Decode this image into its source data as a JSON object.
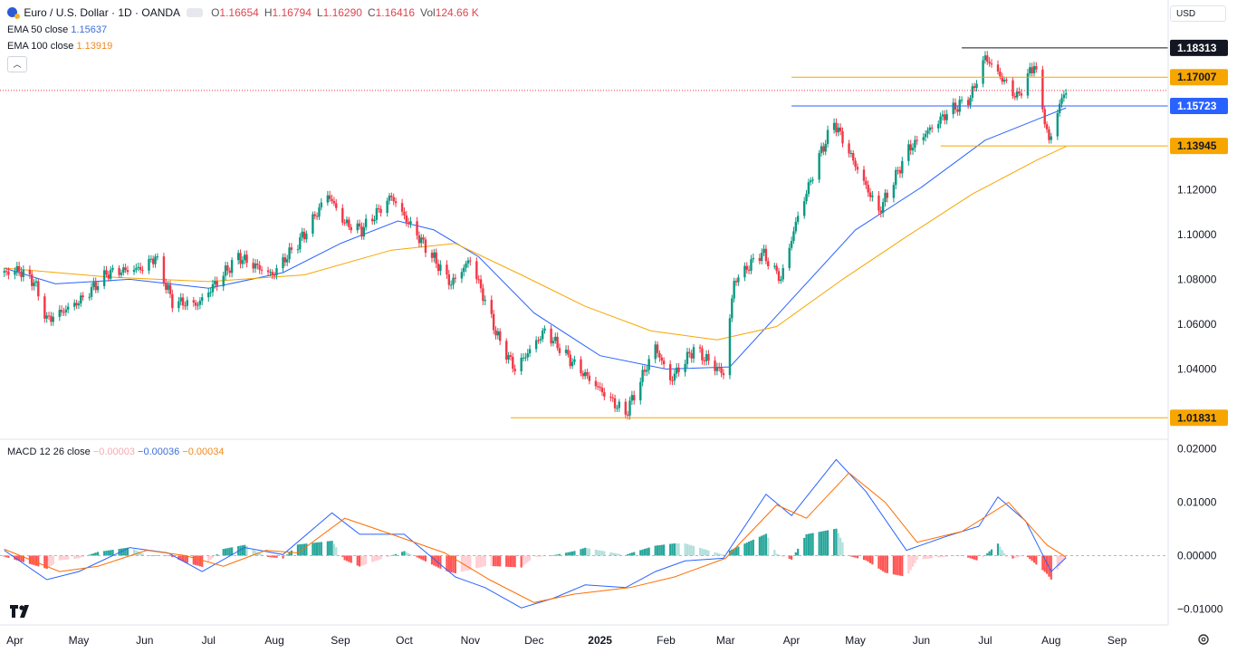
{
  "header": {
    "symbol": "Euro / U.S. Dollar · 1D · OANDA",
    "ohlc": [
      {
        "k": "O",
        "v": "1.16654"
      },
      {
        "k": "H",
        "v": "1.16794"
      },
      {
        "k": "L",
        "v": "1.16290"
      },
      {
        "k": "C",
        "v": "1.16416"
      },
      {
        "k": "Vol",
        "v": "124.66 K"
      }
    ],
    "ema50_label": "EMA 50 close",
    "ema50_value": "1.15637",
    "ema100_label": "EMA 100 close",
    "ema100_value": "1.13919",
    "macd_label": "MACD 12 26 close",
    "macd_values": [
      "−0.00003",
      "−0.00036",
      "−0.00034"
    ],
    "currency": "USD"
  },
  "colors": {
    "up": "#089981",
    "down": "#f23645",
    "ema50": "#2962ff",
    "ema100": "#f7a600",
    "hist_up_strong": "#26a69a",
    "hist_up_weak": "#b2dfdb",
    "hist_down_strong": "#ff5252",
    "hist_down_weak": "#ffcdd2",
    "macd_line": "#2962ff",
    "signal_line": "#ff6d00",
    "grid_text": "#131722"
  },
  "chart_data": [
    {
      "type": "candlestick",
      "title": "Euro / U.S. Dollar · 1D · OANDA",
      "x_labels": [
        "Apr",
        "May",
        "Jun",
        "Jul",
        "Aug",
        "Sep",
        "Oct",
        "Nov",
        "Dec",
        "2025",
        "Feb",
        "Mar",
        "Apr",
        "May",
        "Jun",
        "Jul",
        "Aug",
        "Sep"
      ],
      "x_label_dates": [
        "2024-04",
        "2024-05",
        "2024-06",
        "2024-07",
        "2024-08",
        "2024-09",
        "2024-10",
        "2024-11",
        "2024-12",
        "2025-01",
        "2025-02",
        "2025-03",
        "2025-04",
        "2025-05",
        "2025-06",
        "2025-07",
        "2025-08",
        "2025-09"
      ],
      "x_range": [
        "2024-03-25",
        "2025-09-25"
      ],
      "y_ticks": [
        "1.04000",
        "1.06000",
        "1.08000",
        "1.10000",
        "1.12000"
      ],
      "y_tick_values": [
        1.04,
        1.06,
        1.08,
        1.1,
        1.12
      ],
      "ylim": [
        1.0148,
        1.1875
      ],
      "grid": false,
      "price_path": [
        [
          "2024-03-27",
          1.083
        ],
        [
          "2024-04-03",
          1.084
        ],
        [
          "2024-04-10",
          1.079
        ],
        [
          "2024-04-16",
          1.062
        ],
        [
          "2024-04-22",
          1.065
        ],
        [
          "2024-05-01",
          1.07
        ],
        [
          "2024-05-15",
          1.083
        ],
        [
          "2024-05-31",
          1.085
        ],
        [
          "2024-06-06",
          1.09
        ],
        [
          "2024-06-14",
          1.07
        ],
        [
          "2024-06-26",
          1.069
        ],
        [
          "2024-07-15",
          1.09
        ],
        [
          "2024-07-31",
          1.082
        ],
        [
          "2024-08-15",
          1.1
        ],
        [
          "2024-08-26",
          1.118
        ],
        [
          "2024-09-03",
          1.105
        ],
        [
          "2024-09-11",
          1.102
        ],
        [
          "2024-09-25",
          1.117
        ],
        [
          "2024-10-01",
          1.108
        ],
        [
          "2024-10-15",
          1.089
        ],
        [
          "2024-10-23",
          1.078
        ],
        [
          "2024-11-01",
          1.089
        ],
        [
          "2024-11-14",
          1.054
        ],
        [
          "2024-11-22",
          1.04
        ],
        [
          "2024-12-06",
          1.057
        ],
        [
          "2024-12-20",
          1.042
        ],
        [
          "2025-01-02",
          1.03
        ],
        [
          "2025-01-13",
          1.02
        ],
        [
          "2025-01-27",
          1.05
        ],
        [
          "2025-02-03",
          1.035
        ],
        [
          "2025-02-14",
          1.049
        ],
        [
          "2025-02-28",
          1.038
        ],
        [
          "2025-03-05",
          1.079
        ],
        [
          "2025-03-18",
          1.092
        ],
        [
          "2025-03-27",
          1.08
        ],
        [
          "2025-04-03",
          1.105
        ],
        [
          "2025-04-14",
          1.135
        ],
        [
          "2025-04-21",
          1.15
        ],
        [
          "2025-05-12",
          1.11
        ],
        [
          "2025-05-26",
          1.138
        ],
        [
          "2025-06-13",
          1.154
        ],
        [
          "2025-06-24",
          1.161
        ],
        [
          "2025-07-01",
          1.179
        ],
        [
          "2025-07-16",
          1.161
        ],
        [
          "2025-07-24",
          1.176
        ],
        [
          "2025-07-31",
          1.141
        ],
        [
          "2025-08-05",
          1.158
        ],
        [
          "2025-08-08",
          1.1642
        ]
      ],
      "series": [
        {
          "name": "EMA 50 close",
          "values": [
            [
              "2024-03-27",
              1.085
            ],
            [
              "2024-04-20",
              1.078
            ],
            [
              "2024-05-25",
              1.08
            ],
            [
              "2024-07-01",
              1.076
            ],
            [
              "2024-08-05",
              1.083
            ],
            [
              "2024-09-01",
              1.096
            ],
            [
              "2024-09-28",
              1.106
            ],
            [
              "2024-10-15",
              1.102
            ],
            [
              "2024-11-05",
              1.09
            ],
            [
              "2024-12-01",
              1.065
            ],
            [
              "2025-01-01",
              1.046
            ],
            [
              "2025-02-01",
              1.04
            ],
            [
              "2025-03-03",
              1.041
            ],
            [
              "2025-04-02",
              1.072
            ],
            [
              "2025-05-01",
              1.102
            ],
            [
              "2025-06-01",
              1.121
            ],
            [
              "2025-07-01",
              1.142
            ],
            [
              "2025-08-08",
              1.1564
            ]
          ]
        },
        {
          "name": "EMA 100 close",
          "values": [
            [
              "2024-03-27",
              1.085
            ],
            [
              "2024-05-15",
              1.081
            ],
            [
              "2024-07-01",
              1.079
            ],
            [
              "2024-08-15",
              1.082
            ],
            [
              "2024-09-25",
              1.093
            ],
            [
              "2024-10-25",
              1.096
            ],
            [
              "2024-11-25",
              1.082
            ],
            [
              "2024-12-25",
              1.068
            ],
            [
              "2025-01-25",
              1.057
            ],
            [
              "2025-02-25",
              1.053
            ],
            [
              "2025-03-25",
              1.059
            ],
            [
              "2025-04-25",
              1.08
            ],
            [
              "2025-05-25",
              1.099
            ],
            [
              "2025-06-25",
              1.118
            ],
            [
              "2025-07-25",
              1.133
            ],
            [
              "2025-08-08",
              1.1392
            ]
          ]
        }
      ],
      "horizontal_lines": [
        {
          "label": "1.18313",
          "value": 1.18313,
          "from": "2025-06-20",
          "badge": "dark"
        },
        {
          "label": "1.17007",
          "value": 1.17007,
          "from": "2025-04-01",
          "badge": "orange"
        },
        {
          "label": "1.15723",
          "value": 1.15723,
          "from": "2025-04-01",
          "badge": "blue"
        },
        {
          "label": "1.13945",
          "value": 1.13945,
          "from": "2025-06-10",
          "badge": "orange"
        },
        {
          "label": "1.01831",
          "value": 1.01831,
          "from": "2024-11-20",
          "badge": "orange"
        }
      ],
      "last_price": 1.16416
    },
    {
      "type": "line",
      "title": "MACD 12 26 close",
      "y_ticks": [
        "0.02000",
        "0.01000",
        "0.00000",
        "−0.01000"
      ],
      "y_tick_values": [
        0.02,
        0.01,
        0.0,
        -0.01
      ],
      "ylim": [
        -0.0113,
        0.0213
      ],
      "series": [
        {
          "name": "MACD",
          "values": [
            [
              "2024-03-27",
              0.001
            ],
            [
              "2024-04-16",
              -0.0045
            ],
            [
              "2024-05-01",
              -0.003
            ],
            [
              "2024-05-25",
              0.0015
            ],
            [
              "2024-06-12",
              0.0005
            ],
            [
              "2024-06-28",
              -0.003
            ],
            [
              "2024-07-18",
              0.0015
            ],
            [
              "2024-08-05",
              0.0002
            ],
            [
              "2024-08-28",
              0.008
            ],
            [
              "2024-09-10",
              0.004
            ],
            [
              "2024-10-01",
              0.004
            ],
            [
              "2024-10-25",
              -0.004
            ],
            [
              "2024-11-08",
              -0.006
            ],
            [
              "2024-11-25",
              -0.0098
            ],
            [
              "2024-12-10",
              -0.008
            ],
            [
              "2024-12-25",
              -0.0055
            ],
            [
              "2025-01-13",
              -0.006
            ],
            [
              "2025-01-27",
              -0.003
            ],
            [
              "2025-02-10",
              -0.001
            ],
            [
              "2025-02-28",
              -0.0005
            ],
            [
              "2025-03-20",
              0.0115
            ],
            [
              "2025-04-01",
              0.0075
            ],
            [
              "2025-04-22",
              0.018
            ],
            [
              "2025-05-06",
              0.012
            ],
            [
              "2025-05-25",
              0.001
            ],
            [
              "2025-06-12",
              0.0035
            ],
            [
              "2025-06-28",
              0.0055
            ],
            [
              "2025-07-07",
              0.011
            ],
            [
              "2025-07-20",
              0.0065
            ],
            [
              "2025-08-01",
              -0.003
            ],
            [
              "2025-08-08",
              -0.0004
            ]
          ]
        },
        {
          "name": "Signal",
          "values": [
            [
              "2024-03-27",
              0.0012
            ],
            [
              "2024-04-22",
              -0.003
            ],
            [
              "2024-05-10",
              -0.002
            ],
            [
              "2024-06-02",
              0.001
            ],
            [
              "2024-06-20",
              0.0
            ],
            [
              "2024-07-08",
              -0.002
            ],
            [
              "2024-07-28",
              0.001
            ],
            [
              "2024-08-12",
              0.0005
            ],
            [
              "2024-09-03",
              0.007
            ],
            [
              "2024-09-25",
              0.004
            ],
            [
              "2024-10-20",
              0.0005
            ],
            [
              "2024-11-10",
              -0.0045
            ],
            [
              "2024-12-01",
              -0.0088
            ],
            [
              "2024-12-20",
              -0.0072
            ],
            [
              "2025-01-15",
              -0.006
            ],
            [
              "2025-02-05",
              -0.004
            ],
            [
              "2025-03-01",
              -0.0005
            ],
            [
              "2025-03-25",
              0.0095
            ],
            [
              "2025-04-08",
              0.007
            ],
            [
              "2025-04-28",
              0.0155
            ],
            [
              "2025-05-15",
              0.01
            ],
            [
              "2025-05-30",
              0.0025
            ],
            [
              "2025-06-20",
              0.0045
            ],
            [
              "2025-07-12",
              0.01
            ],
            [
              "2025-07-30",
              0.002
            ],
            [
              "2025-08-08",
              -0.0003
            ]
          ]
        }
      ],
      "histogram": "MACD minus Signal"
    }
  ]
}
